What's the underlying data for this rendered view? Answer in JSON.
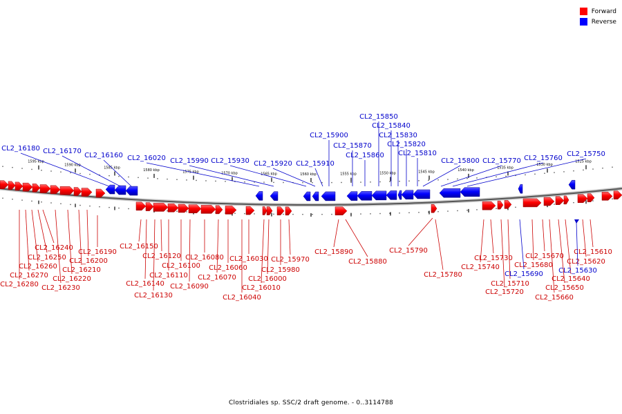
{
  "legend": {
    "forward_label": "Forward",
    "reverse_label": "Reverse",
    "forward_color": "#ff0000",
    "reverse_color": "#0000ff"
  },
  "caption": "Clostridiales sp. SSC/2 draft genome. - 0..3114788",
  "scale_labels": [
    "1595 kbp",
    "1590 kbp",
    "1585 kbp",
    "1580 kbp",
    "1575 kbp",
    "1570 kbp",
    "1565 kbp",
    "1560 kbp",
    "1555 kbp",
    "1550 kbp",
    "1545 kbp",
    "1540 kbp",
    "1535 kbp",
    "1530 kbp",
    "1525 kbp"
  ],
  "genes_reverse": [
    "CL2_16180",
    "CL2_16170",
    "CL2_16160",
    "CL2_16020",
    "CL2_15990",
    "CL2_15930",
    "CL2_15920",
    "CL2_15910",
    "CL2_15900",
    "CL2_15870",
    "CL2_15860",
    "CL2_15850",
    "CL2_15840",
    "CL2_15830",
    "CL2_15820",
    "CL2_15810",
    "CL2_15800",
    "CL2_15770",
    "CL2_15760",
    "CL2_15750"
  ],
  "genes_forward": [
    "CL2_16240",
    "CL2_16250",
    "CL2_16260",
    "CL2_16270",
    "CL2_16280",
    "CL2_16190",
    "CL2_16200",
    "CL2_16210",
    "CL2_16220",
    "CL2_16230",
    "CL2_16150",
    "CL2_16120",
    "CL2_16100",
    "CL2_16110",
    "CL2_16140",
    "CL2_16130",
    "CL2_16090",
    "CL2_16080",
    "CL2_16060",
    "CL2_16070",
    "CL2_16030",
    "CL2_16000",
    "CL2_16010",
    "CL2_16040",
    "CL2_15970",
    "CL2_15980",
    "CL2_15890",
    "CL2_15880",
    "CL2_15790",
    "CL2_15780",
    "CL2_15730",
    "CL2_15740",
    "CL2_15710",
    "CL2_15720",
    "CL2_15670",
    "CL2_15680",
    "CL2_15640",
    "CL2_15650",
    "CL2_15660",
    "CL2_15610",
    "CL2_15620"
  ],
  "genes_reverse_lower": [
    "CL2_15690",
    "CL2_15630"
  ]
}
